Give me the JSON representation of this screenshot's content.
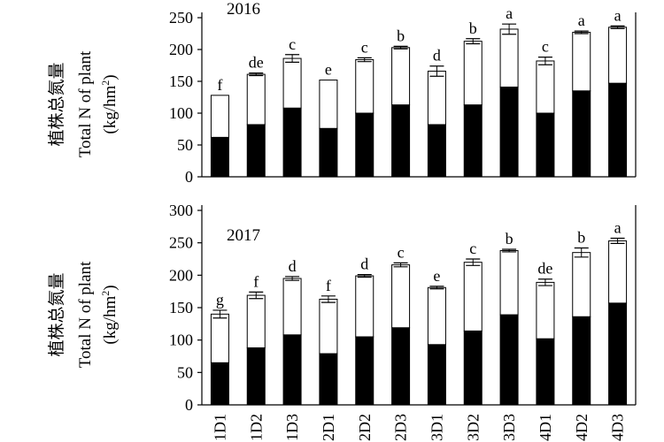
{
  "chart_data": [
    {
      "type": "bar",
      "stacked": true,
      "title": "2016",
      "ylabel_cn": "植株总氮量",
      "ylabel": "Total N of plant",
      "yunit_base": "(kg/hm",
      "yunit_exp": "2",
      "yunit_close": ")",
      "ylim": [
        0,
        250
      ],
      "yticks": [
        0,
        50,
        100,
        150,
        200,
        250
      ],
      "grid": false,
      "categories": [
        "N1D1",
        "N1D2",
        "N1D3",
        "N2D1",
        "N2D2",
        "N2D3",
        "N3D1",
        "N3D2",
        "N3D3",
        "N4D1",
        "N4D2",
        "N4D3"
      ],
      "xtick_labels": [
        "1D1",
        "1D2",
        "1D3",
        "2D1",
        "2D2",
        "2D3",
        "3D1",
        "3D2",
        "3D3",
        "4D1",
        "4D2",
        "4D3"
      ],
      "series": [
        {
          "color": "#000000",
          "values": [
            62,
            82,
            108,
            76,
            100,
            113,
            82,
            113,
            141,
            100,
            135,
            147
          ]
        },
        {
          "color": "#ffffff",
          "values": [
            66,
            79,
            78,
            76,
            84,
            90,
            84,
            100,
            91,
            82,
            92,
            88
          ]
        }
      ],
      "totals": [
        128,
        161,
        186,
        152,
        184,
        203,
        166,
        213,
        232,
        182,
        227,
        235
      ],
      "errors": [
        0,
        2,
        6,
        0,
        3,
        2,
        8,
        4,
        8,
        6,
        2,
        2
      ],
      "letters": [
        "f",
        "de",
        "c",
        "e",
        "c",
        "b",
        "d",
        "b",
        "a",
        "c",
        "a",
        "a"
      ]
    },
    {
      "type": "bar",
      "stacked": true,
      "title": "2017",
      "ylabel_cn": "植株总氮量",
      "ylabel": "Total N of plant",
      "yunit_base": "(kg/hm",
      "yunit_exp": "2",
      "yunit_close": ")",
      "ylim": [
        0,
        300
      ],
      "yticks": [
        0,
        50,
        100,
        150,
        200,
        250,
        300
      ],
      "grid": false,
      "categories": [
        "N1D1",
        "N1D2",
        "N1D3",
        "N2D1",
        "N2D2",
        "N2D3",
        "N3D1",
        "N3D2",
        "N3D3",
        "N4D1",
        "N4D2",
        "N4D3"
      ],
      "xtick_labels": [
        "1D1",
        "1D2",
        "1D3",
        "2D1",
        "2D2",
        "2D3",
        "3D1",
        "3D2",
        "3D3",
        "4D1",
        "4D2",
        "4D3"
      ],
      "series": [
        {
          "color": "#000000",
          "values": [
            65,
            88,
            108,
            79,
            105,
            119,
            93,
            114,
            139,
            102,
            136,
            157
          ]
        },
        {
          "color": "#ffffff",
          "values": [
            75,
            81,
            87,
            84,
            94,
            97,
            88,
            106,
            99,
            87,
            99,
            96
          ]
        }
      ],
      "totals": [
        140,
        169,
        195,
        163,
        199,
        216,
        181,
        220,
        238,
        189,
        235,
        253
      ],
      "errors": [
        6,
        5,
        3,
        5,
        2,
        3,
        2,
        5,
        2,
        5,
        7,
        4
      ],
      "letters": [
        "g",
        "f",
        "d",
        "f",
        "d",
        "c",
        "e",
        "c",
        "b",
        "de",
        "b",
        "a"
      ]
    }
  ]
}
